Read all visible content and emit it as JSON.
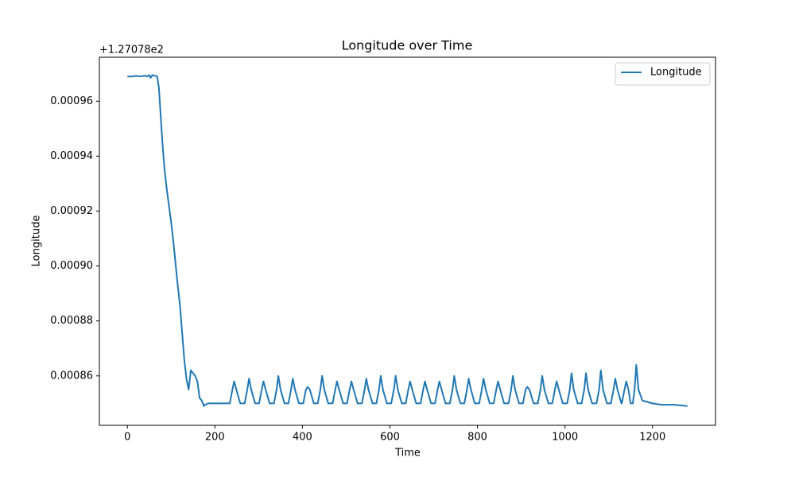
{
  "chart_data": {
    "type": "line",
    "title": "Longitude over Time",
    "x_label": "Time",
    "y_label": "Longitude",
    "y_offset_text": "+1.27078e2",
    "x": [
      0,
      10,
      20,
      30,
      40,
      45,
      50,
      53,
      57,
      62,
      68,
      72,
      76,
      80,
      85,
      90,
      95,
      100,
      105,
      110,
      115,
      120,
      125,
      130,
      135,
      140,
      145,
      150,
      155,
      160,
      165,
      170,
      175,
      178,
      185,
      234,
      240,
      244,
      249,
      258,
      268,
      274,
      278,
      283,
      292,
      301,
      307,
      311,
      316,
      325,
      335,
      341,
      345,
      350,
      359,
      368,
      374,
      378,
      383,
      392,
      402,
      408,
      412,
      417,
      426,
      435,
      441,
      445,
      450,
      459,
      469,
      475,
      479,
      484,
      493,
      502,
      508,
      512,
      517,
      526,
      536,
      542,
      546,
      551,
      560,
      569,
      575,
      579,
      584,
      593,
      603,
      609,
      613,
      618,
      627,
      636,
      642,
      646,
      651,
      660,
      670,
      676,
      680,
      685,
      694,
      703,
      709,
      713,
      718,
      727,
      737,
      743,
      747,
      752,
      761,
      770,
      776,
      780,
      785,
      794,
      804,
      810,
      814,
      819,
      828,
      837,
      843,
      847,
      852,
      861,
      871,
      877,
      881,
      886,
      895,
      904,
      910,
      914,
      919,
      928,
      938,
      944,
      948,
      953,
      962,
      971,
      977,
      981,
      986,
      995,
      1005,
      1011,
      1015,
      1020,
      1029,
      1038,
      1044,
      1048,
      1053,
      1062,
      1072,
      1078,
      1082,
      1087,
      1096,
      1105,
      1111,
      1115,
      1120,
      1129,
      1130,
      1136,
      1140,
      1145,
      1150,
      1155,
      1159,
      1163,
      1168,
      1177,
      1200,
      1220,
      1250,
      1280
    ],
    "series": [
      {
        "name": "Longitude",
        "color": "#1f77b4",
        "values": [
          0.000969,
          0.000969,
          0.0009692,
          0.000969,
          0.0009693,
          0.000969,
          0.0009695,
          0.0009685,
          0.0009695,
          0.0009693,
          0.000969,
          0.000965,
          0.000955,
          0.000945,
          0.000935,
          0.000928,
          0.000922,
          0.000916,
          0.000909,
          0.000901,
          0.000893,
          0.000886,
          0.000876,
          0.000866,
          0.000859,
          0.000855,
          0.000862,
          0.000861,
          0.00086,
          0.000858,
          0.000852,
          0.000851,
          0.000849,
          0.0008495,
          0.00085,
          0.00085,
          0.000855,
          0.000858,
          0.000855,
          0.00085,
          0.00085,
          0.000855,
          0.000859,
          0.000855,
          0.00085,
          0.00085,
          0.000855,
          0.000858,
          0.000855,
          0.00085,
          0.00085,
          0.000855,
          0.00086,
          0.000855,
          0.00085,
          0.00085,
          0.000855,
          0.000859,
          0.000855,
          0.00085,
          0.00085,
          0.000855,
          0.000856,
          0.000855,
          0.00085,
          0.00085,
          0.000855,
          0.00086,
          0.000855,
          0.00085,
          0.00085,
          0.000855,
          0.000858,
          0.000855,
          0.00085,
          0.00085,
          0.000855,
          0.000858,
          0.000855,
          0.00085,
          0.00085,
          0.000855,
          0.000859,
          0.000855,
          0.00085,
          0.00085,
          0.000855,
          0.00086,
          0.000855,
          0.00085,
          0.00085,
          0.000855,
          0.00086,
          0.000855,
          0.00085,
          0.00085,
          0.000855,
          0.000858,
          0.000855,
          0.00085,
          0.00085,
          0.000855,
          0.000858,
          0.000855,
          0.00085,
          0.00085,
          0.000855,
          0.000858,
          0.000855,
          0.00085,
          0.00085,
          0.000855,
          0.00086,
          0.000855,
          0.00085,
          0.00085,
          0.000855,
          0.000859,
          0.000855,
          0.00085,
          0.00085,
          0.000855,
          0.000859,
          0.000855,
          0.00085,
          0.00085,
          0.000855,
          0.000858,
          0.000855,
          0.00085,
          0.00085,
          0.000855,
          0.00086,
          0.000855,
          0.00085,
          0.00085,
          0.000855,
          0.000856,
          0.000855,
          0.00085,
          0.00085,
          0.000855,
          0.00086,
          0.000855,
          0.00085,
          0.00085,
          0.000855,
          0.000858,
          0.000855,
          0.00085,
          0.00085,
          0.000855,
          0.000861,
          0.000855,
          0.00085,
          0.00085,
          0.000855,
          0.000861,
          0.000855,
          0.00085,
          0.00085,
          0.000855,
          0.000862,
          0.000855,
          0.00085,
          0.00085,
          0.000855,
          0.000859,
          0.000855,
          0.00085,
          0.00085,
          0.000855,
          0.000858,
          0.000855,
          0.00085,
          0.00085,
          0.000855,
          0.000864,
          0.000855,
          0.000851,
          0.00085,
          0.0008495,
          0.0008495,
          0.000849
        ]
      }
    ],
    "xlim": [
      -64,
      1344
    ],
    "xticks": [
      0,
      200,
      400,
      600,
      800,
      1000,
      1200
    ],
    "ylim": [
      0.000842,
      0.000976
    ],
    "yticks": [
      0.00086,
      0.00088,
      {
        "value": 0.0009,
        "label": "0.00090"
      },
      0.00092,
      0.00094,
      0.00096
    ],
    "grid": false,
    "legend": "upper right"
  }
}
